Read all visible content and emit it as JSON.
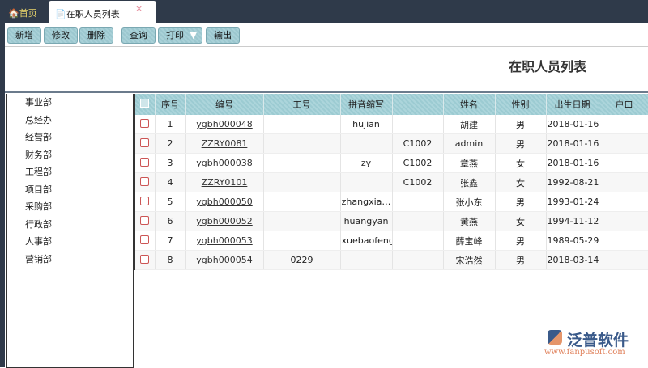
{
  "tabs": {
    "home": "首页",
    "active": "在职人员列表",
    "close": "×"
  },
  "toolbar": {
    "add": "新增",
    "edit": "修改",
    "delete": "删除",
    "query": "查询",
    "print": "打印",
    "export": "输出"
  },
  "page_title": "在职人员列表",
  "departments": [
    "事业部",
    "总经办",
    "经营部",
    "财务部",
    "工程部",
    "项目部",
    "采购部",
    "行政部",
    "人事部",
    "营销部"
  ],
  "table": {
    "headers": [
      "序号",
      "编号",
      "工号",
      "拼音缩写",
      "",
      "姓名",
      "性别",
      "出生日期",
      "户口"
    ],
    "rows": [
      [
        "1",
        "ygbh000048",
        "",
        "hujian",
        "",
        "胡建",
        "男",
        "2018-01-16",
        ""
      ],
      [
        "2",
        "ZZRY0081",
        "",
        "",
        "C1002",
        "admin",
        "男",
        "2018-01-16",
        ""
      ],
      [
        "3",
        "ygbh000038",
        "",
        "zy",
        "C1002",
        "章燕",
        "女",
        "2018-01-16",
        ""
      ],
      [
        "4",
        "ZZRY0101",
        "",
        "",
        "C1002",
        "张鑫",
        "女",
        "1992-08-21",
        ""
      ],
      [
        "5",
        "ygbh000050",
        "",
        "zhangxia…",
        "",
        "张小东",
        "男",
        "1993-01-24",
        ""
      ],
      [
        "6",
        "ygbh000052",
        "",
        "huangyan",
        "",
        "黄燕",
        "女",
        "1994-11-12",
        ""
      ],
      [
        "7",
        "ygbh000053",
        "",
        "xuebaofeng",
        "",
        "薛宝峰",
        "男",
        "1989-05-29",
        ""
      ],
      [
        "8",
        "ygbh000054",
        "0229",
        "",
        "",
        "宋浩然",
        "男",
        "2018-03-14",
        ""
      ]
    ]
  },
  "logo": {
    "cn": "泛普软件",
    "en": "www.fanpusoft.com"
  }
}
